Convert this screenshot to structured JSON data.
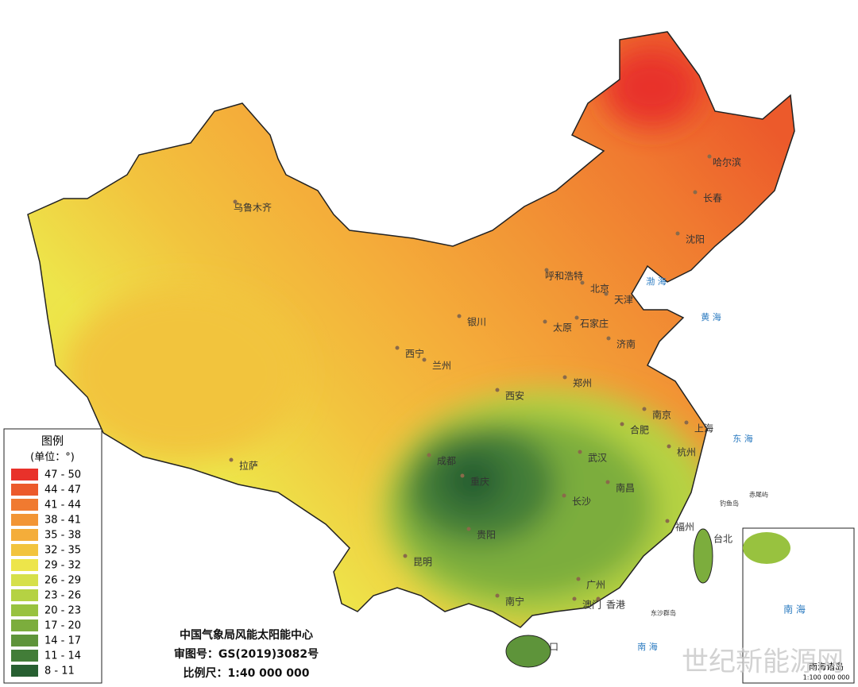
{
  "legend": {
    "title": "图例",
    "unit": "(单位：°)",
    "items": [
      {
        "label": "47 - 50",
        "color": "#e8312a"
      },
      {
        "label": "44 - 47",
        "color": "#ec5a2b"
      },
      {
        "label": "41 - 44",
        "color": "#f07a30"
      },
      {
        "label": "38 - 41",
        "color": "#f29535"
      },
      {
        "label": "35 - 38",
        "color": "#f4ad3a"
      },
      {
        "label": "32 - 35",
        "color": "#f2c43e"
      },
      {
        "label": "29 - 32",
        "color": "#ede54a"
      },
      {
        "label": "26 - 29",
        "color": "#d6e04a"
      },
      {
        "label": "23 - 26",
        "color": "#b5d243"
      },
      {
        "label": "20 - 23",
        "color": "#98c23f"
      },
      {
        "label": "17 - 20",
        "color": "#7cad3d"
      },
      {
        "label": "14 - 17",
        "color": "#5e943a"
      },
      {
        "label": "11 - 14",
        "color": "#427d38"
      },
      {
        "label": "8 - 11",
        "color": "#275f31"
      }
    ]
  },
  "cities": [
    {
      "label": "乌鲁木齐"
    },
    {
      "label": "哈尔滨"
    },
    {
      "label": "长春"
    },
    {
      "label": "沈阳"
    },
    {
      "label": "呼和浩特"
    },
    {
      "label": "北京"
    },
    {
      "label": "天津"
    },
    {
      "label": "石家庄"
    },
    {
      "label": "太原"
    },
    {
      "label": "济南"
    },
    {
      "label": "银川"
    },
    {
      "label": "西宁"
    },
    {
      "label": "兰州"
    },
    {
      "label": "郑州"
    },
    {
      "label": "西安"
    },
    {
      "label": "南京"
    },
    {
      "label": "合肥"
    },
    {
      "label": "上海"
    },
    {
      "label": "杭州"
    },
    {
      "label": "武汉"
    },
    {
      "label": "成都"
    },
    {
      "label": "重庆"
    },
    {
      "label": "南昌"
    },
    {
      "label": "长沙"
    },
    {
      "label": "拉萨"
    },
    {
      "label": "福州"
    },
    {
      "label": "台北"
    },
    {
      "label": "贵阳"
    },
    {
      "label": "昆明"
    },
    {
      "label": "广州"
    },
    {
      "label": "南宁"
    },
    {
      "label": "澳门"
    },
    {
      "label": "香港"
    },
    {
      "label": "海口"
    }
  ],
  "islands": [
    "钓鱼岛",
    "赤尾屿",
    "东沙群岛"
  ],
  "seas": [
    "渤 海",
    "黄 海",
    "东 海",
    "南 海"
  ],
  "credits": {
    "org": "中国气象局风能太阳能中心",
    "approval": "审图号：GS(2019)3082号",
    "scale": "比例尺：1:40 000 000"
  },
  "inset": {
    "title": "南海诸岛",
    "scale": "1:100 000 000",
    "sea": "南 海"
  },
  "watermark": "世纪新能源网"
}
